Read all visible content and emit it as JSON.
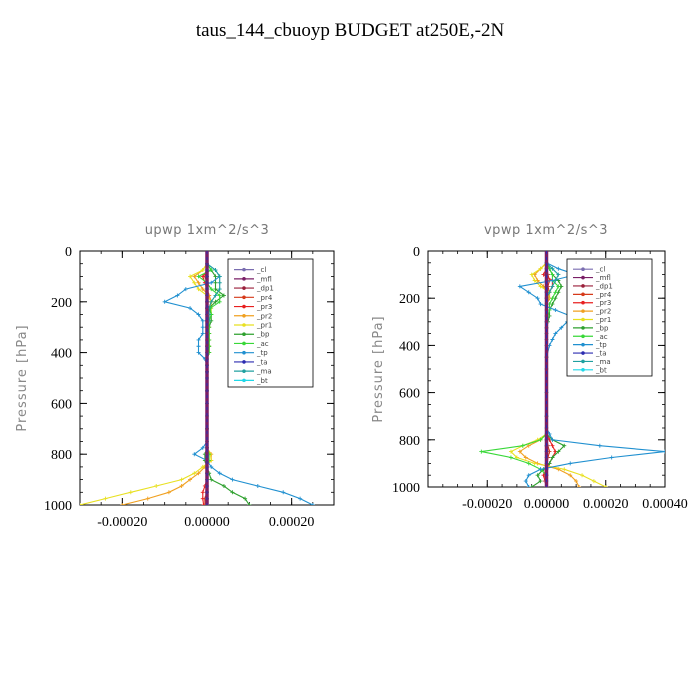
{
  "title": "taus_144_cbuoyp  BUDGET at250E,-2N",
  "chart_data": [
    {
      "type": "line",
      "panel_title": "upwp   1xm^2/s^3",
      "ylabel": "Pressure [hPa]",
      "xlim": [
        -0.0003,
        0.0003
      ],
      "ylim": [
        1000,
        0
      ],
      "xticks": [
        -0.0002,
        0.0,
        0.0002
      ],
      "xtick_labels": [
        "-0.00020",
        "0.00000",
        "0.00020"
      ],
      "yticks": [
        0,
        200,
        400,
        600,
        800,
        1000
      ],
      "ytick_labels": [
        "0",
        "200",
        "400",
        "600",
        "800",
        "1000"
      ],
      "legend_position": "top-right",
      "y": [
        50,
        75,
        100,
        125,
        150,
        175,
        200,
        225,
        250,
        275,
        300,
        325,
        350,
        375,
        400,
        425,
        450,
        475,
        500,
        550,
        600,
        650,
        700,
        750,
        775,
        800,
        825,
        850,
        875,
        900,
        925,
        950,
        975,
        1000
      ],
      "series": [
        {
          "name": "_cl",
          "color": "#7a6db0",
          "values": [
            0,
            0,
            0,
            0,
            0,
            0,
            0,
            0,
            0,
            0,
            0,
            0,
            0,
            0,
            0,
            0,
            0,
            0,
            0,
            0,
            0,
            0,
            0,
            0,
            0,
            0,
            0,
            0,
            0,
            0,
            0,
            0,
            0,
            0
          ]
        },
        {
          "name": "_mfl",
          "color": "#7a1f66",
          "values": [
            0,
            0,
            0,
            0,
            0,
            0,
            0,
            0,
            0,
            0,
            0,
            0,
            0,
            0,
            0,
            0,
            0,
            0,
            0,
            0,
            0,
            0,
            0,
            0,
            0,
            0,
            0,
            0,
            0,
            0,
            0,
            0,
            0,
            0
          ]
        },
        {
          "name": "_dp1",
          "color": "#9a1f3a",
          "values": [
            0,
            0,
            0,
            0,
            0,
            0,
            0,
            0,
            0,
            0,
            0,
            0,
            0,
            0,
            0,
            0,
            0,
            0,
            0,
            0,
            0,
            0,
            0,
            0,
            0,
            0,
            0,
            0,
            0,
            0,
            0,
            0,
            0,
            0
          ]
        },
        {
          "name": "_pr4",
          "color": "#d63a1a",
          "values": [
            0,
            0,
            -5e-06,
            0,
            0,
            0,
            0,
            0,
            0,
            0,
            0,
            0,
            0,
            0,
            0,
            0,
            0,
            0,
            0,
            0,
            0,
            0,
            0,
            0,
            0,
            0,
            0,
            0,
            0,
            0,
            0,
            0,
            -5e-06,
            -5e-06
          ]
        },
        {
          "name": "_pr3",
          "color": "#e82020",
          "values": [
            0,
            0,
            -1e-05,
            -5e-06,
            0,
            5e-06,
            1e-05,
            5e-06,
            0,
            0,
            0,
            0,
            0,
            0,
            0,
            0,
            0,
            0,
            0,
            0,
            0,
            0,
            0,
            0,
            0,
            0,
            0,
            0,
            0,
            0,
            -5e-06,
            -1e-05,
            -1e-05,
            -8e-06
          ]
        },
        {
          "name": "_pr2",
          "color": "#f0a020",
          "values": [
            0,
            -1e-05,
            -3e-05,
            -2e-05,
            -1e-05,
            5e-06,
            1e-05,
            5e-06,
            5e-06,
            5e-06,
            5e-06,
            5e-06,
            5e-06,
            5e-06,
            5e-06,
            0,
            0,
            0,
            0,
            0,
            0,
            0,
            0,
            0,
            0,
            1e-05,
            1e-05,
            -5e-06,
            -2e-05,
            -4e-05,
            -6e-05,
            -9e-05,
            -0.00014,
            -0.0002
          ]
        },
        {
          "name": "_pr1",
          "color": "#e8e020",
          "values": [
            0,
            -1e-05,
            -4e-05,
            -3e-05,
            -2e-05,
            0,
            1e-05,
            1e-05,
            1e-05,
            5e-06,
            5e-06,
            5e-06,
            5e-06,
            5e-06,
            5e-06,
            0,
            0,
            0,
            0,
            0,
            0,
            0,
            0,
            0,
            0,
            8e-06,
            1e-05,
            -1e-05,
            -3e-05,
            -6e-05,
            -0.00012,
            -0.00018,
            -0.00024,
            -0.0003
          ]
        },
        {
          "name": "_bp",
          "color": "#2ea02e",
          "values": [
            0,
            1e-05,
            2e-05,
            2e-05,
            2e-05,
            4e-05,
            2e-05,
            5e-06,
            1e-05,
            1e-05,
            5e-06,
            5e-06,
            5e-06,
            5e-06,
            5e-06,
            0,
            0,
            0,
            0,
            0,
            0,
            0,
            0,
            0,
            0,
            -5e-06,
            -5e-06,
            0,
            5e-06,
            1e-05,
            4e-05,
            6e-05,
            9e-05,
            0.0001
          ]
        },
        {
          "name": "_ac",
          "color": "#38d838",
          "values": [
            0,
            1e-05,
            -2e-05,
            0,
            1e-05,
            3e-05,
            3e-05,
            8e-06,
            1e-05,
            5e-06,
            5e-06,
            5e-06,
            5e-06,
            5e-06,
            5e-06,
            0,
            0,
            0,
            0,
            0,
            0,
            0,
            0,
            0,
            0,
            5e-06,
            5e-06,
            0,
            0,
            0,
            0,
            0,
            0,
            0
          ]
        },
        {
          "name": "_tp",
          "color": "#2090d0",
          "values": [
            0,
            2e-05,
            3e-05,
            1e-05,
            -5e-05,
            -7e-05,
            -0.0001,
            -4e-05,
            -2e-05,
            -1e-05,
            -1e-05,
            -1e-05,
            -2e-05,
            -2e-05,
            -2e-05,
            -5e-06,
            0,
            0,
            0,
            0,
            0,
            0,
            0,
            0,
            -1e-05,
            -3e-05,
            0,
            1e-05,
            3e-05,
            6e-05,
            0.00012,
            0.00018,
            0.00022,
            0.00025
          ]
        },
        {
          "name": "_ta",
          "color": "#2c2cb0",
          "values": [
            0,
            0,
            0,
            0,
            0,
            0,
            0,
            0,
            0,
            0,
            0,
            0,
            0,
            0,
            0,
            0,
            0,
            0,
            0,
            0,
            0,
            0,
            0,
            0,
            0,
            0,
            0,
            0,
            0,
            0,
            0,
            0,
            0,
            0
          ]
        },
        {
          "name": "_ma",
          "color": "#20a0a0",
          "values": [
            0,
            2e-05,
            3e-05,
            3e-05,
            3e-05,
            2e-05,
            1e-05,
            5e-06,
            5e-06,
            5e-06,
            0,
            0,
            0,
            0,
            0,
            0,
            0,
            0,
            0,
            0,
            0,
            0,
            0,
            0,
            0,
            0,
            0,
            0,
            0,
            0,
            0,
            0,
            0,
            0
          ]
        },
        {
          "name": "_bt",
          "color": "#20d8e8",
          "values": [
            0,
            0,
            0,
            0,
            0,
            0,
            0,
            0,
            0,
            0,
            0,
            0,
            0,
            0,
            0,
            0,
            0,
            0,
            0,
            0,
            0,
            0,
            0,
            0,
            0,
            0,
            0,
            0,
            0,
            0,
            0,
            0,
            0,
            0
          ]
        }
      ]
    },
    {
      "type": "line",
      "panel_title": "vpwp   1xm^2/s^3",
      "ylabel": "Pressure [hPa]",
      "xlim": [
        -0.0004,
        0.0004
      ],
      "ylim": [
        1000,
        0
      ],
      "xticks": [
        -0.0002,
        0.0,
        0.0002,
        0.0004
      ],
      "xtick_labels": [
        "-0.00020",
        "0.00000",
        "0.00020",
        "0.00040"
      ],
      "yticks": [
        0,
        200,
        400,
        600,
        800,
        1000
      ],
      "ytick_labels": [
        "0",
        "200",
        "400",
        "600",
        "800",
        "1000"
      ],
      "legend_position": "top-right",
      "y": [
        50,
        75,
        100,
        125,
        150,
        175,
        200,
        225,
        250,
        275,
        300,
        325,
        350,
        375,
        400,
        450,
        500,
        600,
        700,
        750,
        775,
        800,
        825,
        850,
        875,
        900,
        925,
        950,
        975,
        1000
      ],
      "series": [
        {
          "name": "_cl",
          "color": "#7a6db0",
          "values": [
            0,
            0,
            0,
            0,
            0,
            0,
            0,
            0,
            0,
            0,
            0,
            0,
            0,
            0,
            0,
            0,
            0,
            0,
            0,
            0,
            0,
            0,
            0,
            0,
            0,
            0,
            0,
            0,
            0,
            0
          ]
        },
        {
          "name": "_mfl",
          "color": "#7a1f66",
          "values": [
            0,
            0,
            0,
            0,
            0,
            0,
            0,
            0,
            0,
            0,
            0,
            0,
            0,
            0,
            0,
            0,
            0,
            0,
            0,
            0,
            0,
            0,
            0,
            0,
            0,
            0,
            0,
            0,
            0,
            0
          ]
        },
        {
          "name": "_dp1",
          "color": "#9a1f3a",
          "values": [
            0,
            0,
            0,
            0,
            0,
            0,
            0,
            0,
            0,
            0,
            0,
            0,
            0,
            0,
            0,
            0,
            0,
            0,
            0,
            0,
            0,
            0,
            0,
            0,
            0,
            0,
            0,
            0,
            0,
            0
          ]
        },
        {
          "name": "_pr4",
          "color": "#d63a1a",
          "values": [
            0,
            0,
            5e-06,
            1e-05,
            5e-06,
            1e-05,
            5e-06,
            0,
            0,
            0,
            0,
            0,
            0,
            0,
            0,
            0,
            0,
            0,
            0,
            0,
            0,
            0,
            5e-06,
            1e-05,
            5e-06,
            0,
            -5e-06,
            -5e-06,
            0,
            0
          ]
        },
        {
          "name": "_pr3",
          "color": "#e82020",
          "values": [
            0,
            0,
            -1e-05,
            2e-05,
            2e-05,
            1e-05,
            1e-05,
            0,
            0,
            0,
            0,
            0,
            0,
            0,
            0,
            0,
            0,
            0,
            0,
            0,
            0,
            1e-05,
            2e-05,
            3e-05,
            2e-05,
            1e-05,
            0,
            -1e-05,
            -5e-06,
            0
          ]
        },
        {
          "name": "_pr2",
          "color": "#f0a020",
          "values": [
            0,
            -2e-05,
            -4e-05,
            -3e-05,
            -1e-05,
            1e-05,
            1e-05,
            0,
            0,
            0,
            0,
            0,
            0,
            0,
            0,
            0,
            0,
            0,
            0,
            0,
            0,
            -2e-05,
            -6e-05,
            -9e-05,
            -7e-05,
            -3e-05,
            4e-05,
            8e-05,
            0.0001,
            0.00011
          ]
        },
        {
          "name": "_pr1",
          "color": "#e8e020",
          "values": [
            0,
            -2e-05,
            -5e-05,
            -4e-05,
            -2e-05,
            1e-05,
            5e-06,
            0,
            0,
            0,
            0,
            0,
            0,
            0,
            0,
            0,
            0,
            0,
            0,
            0,
            0,
            -3e-05,
            -8e-05,
            -0.00012,
            -0.0001,
            -4e-05,
            6e-05,
            0.00012,
            0.00016,
            0.0002
          ]
        },
        {
          "name": "_bp",
          "color": "#2ea02e",
          "values": [
            0,
            1e-05,
            2e-05,
            4e-05,
            5e-05,
            4e-05,
            3e-05,
            2e-05,
            1e-05,
            1e-05,
            5e-06,
            0,
            0,
            0,
            0,
            0,
            0,
            0,
            0,
            0,
            0,
            2e-05,
            6e-05,
            4e-05,
            2e-05,
            1e-05,
            -1e-05,
            -3e-05,
            -2e-05,
            -5e-05
          ]
        },
        {
          "name": "_ac",
          "color": "#38d838",
          "values": [
            0,
            1e-05,
            2e-05,
            2e-05,
            4e-05,
            3e-05,
            2e-05,
            1e-05,
            1e-05,
            5e-06,
            0,
            0,
            0,
            0,
            0,
            0,
            0,
            0,
            0,
            0,
            0,
            -2e-05,
            -8e-05,
            -0.00022,
            -0.00012,
            -6e-05,
            -2e-05,
            0,
            0,
            0
          ]
        },
        {
          "name": "_tp",
          "color": "#2090d0",
          "values": [
            0,
            4e-05,
            0.0001,
            2e-05,
            -9e-05,
            -6e-05,
            -3e-05,
            -2e-05,
            3e-05,
            8e-05,
            7e-05,
            5e-05,
            3e-05,
            2e-05,
            1e-05,
            0,
            0,
            0,
            0,
            0,
            1e-05,
            2e-05,
            0.00018,
            0.0004,
            0.00022,
            8e-05,
            -2e-05,
            -6e-05,
            -7e-05,
            -6e-05
          ]
        },
        {
          "name": "_ta",
          "color": "#2c2cb0",
          "values": [
            0,
            0,
            0,
            0,
            0,
            0,
            0,
            0,
            0,
            0,
            0,
            0,
            0,
            0,
            0,
            0,
            0,
            0,
            0,
            0,
            0,
            0,
            0,
            0,
            0,
            0,
            0,
            0,
            0,
            0
          ]
        },
        {
          "name": "_ma",
          "color": "#20a0a0",
          "values": [
            0,
            2e-05,
            4e-05,
            3e-05,
            2e-05,
            1e-05,
            0,
            0,
            0,
            0,
            0,
            0,
            0,
            0,
            0,
            0,
            0,
            0,
            0,
            0,
            0,
            0,
            0,
            0,
            0,
            0,
            0,
            0,
            0,
            0
          ]
        },
        {
          "name": "_bt",
          "color": "#20d8e8",
          "values": [
            0,
            0,
            0,
            0,
            0,
            0,
            0,
            0,
            0,
            0,
            0,
            0,
            0,
            0,
            0,
            0,
            0,
            0,
            0,
            0,
            0,
            0,
            0,
            0,
            0,
            0,
            0,
            0,
            0,
            0
          ]
        }
      ]
    }
  ]
}
